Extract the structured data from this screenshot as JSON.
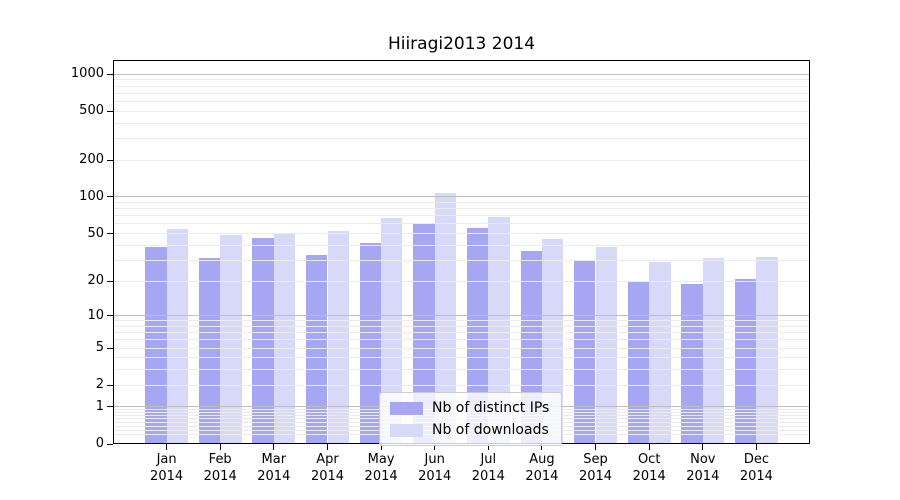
{
  "chart_data": {
    "type": "bar",
    "title": "Hiiragi2013 2014",
    "categories": [
      "Jan",
      "Feb",
      "Mar",
      "Apr",
      "May",
      "Jun",
      "Jul",
      "Aug",
      "Sep",
      "Oct",
      "Nov",
      "Dec"
    ],
    "year": "2014",
    "series": [
      {
        "name": "Nb of distinct IPs",
        "color": "#a6a6f2",
        "values": [
          39,
          31,
          46,
          33,
          42,
          61,
          55,
          36,
          30,
          20,
          19,
          21
        ]
      },
      {
        "name": "Nb of downloads",
        "color": "#d8d8f8",
        "values": [
          54,
          49,
          50,
          52,
          67,
          108,
          69,
          45,
          39,
          29,
          31,
          32
        ]
      }
    ],
    "yscale": "log10(1+v)",
    "ylim": [
      0,
      1300
    ],
    "y_tick_labels": [
      "0",
      "1",
      "2",
      "5",
      "10",
      "20",
      "50",
      "100",
      "200",
      "500",
      "1000"
    ],
    "y_tick_values": [
      0,
      1,
      2,
      5,
      10,
      20,
      50,
      100,
      200,
      500,
      1000
    ],
    "grid": true,
    "legend_position": "lower center",
    "colors": {
      "bar_dark": "#a6a6f2",
      "bar_light": "#d8d8f8",
      "grid_minor": "#ebebeb",
      "grid_major": "#bdbdbd",
      "spine": "#000000",
      "legend_border": "#cccccc"
    }
  }
}
